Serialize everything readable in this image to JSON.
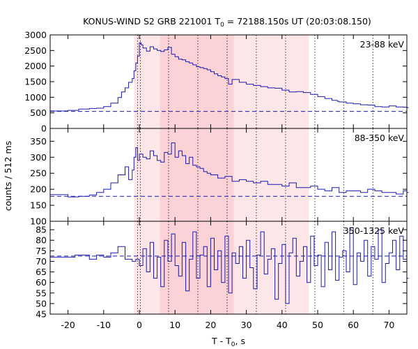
{
  "chart_data": {
    "type": "line",
    "title": {
      "prefix": "KONUS-WIND S2 GRB 221001 T",
      "sub": "0",
      "suffix": " = 72188.150s UT (20:03:08.150)"
    },
    "xlabel": {
      "prefix": "T - T",
      "sub": "0",
      "suffix": ", s"
    },
    "ylabel": "counts / 512 ms",
    "xlim": [
      -25,
      75
    ],
    "x_ticks": [
      -20,
      -10,
      0,
      10,
      20,
      30,
      40,
      50,
      60,
      70
    ],
    "bin_width": 0.512,
    "colors": {
      "curve": "#1a1ab0",
      "background_line": "#1a1ab0",
      "band_outer": "#fde6e8",
      "band_inner": "#fbd3d7",
      "marker_line": "#333333"
    },
    "shaded_intervals": [
      {
        "x": [
          -1.5,
          47.5
        ],
        "shade": "outer"
      },
      {
        "x": [
          5.8,
          26.5
        ],
        "shade": "inner"
      }
    ],
    "marker_lines": [
      -0.5,
      0.3,
      8.2,
      16.4,
      24.6,
      32.8,
      41.0,
      49.2,
      57.3,
      65.5
    ],
    "panels": [
      {
        "label": "23-88 keV",
        "ylim": [
          0,
          3000
        ],
        "y_ticks": [
          0,
          500,
          1000,
          1500,
          2000,
          2500,
          3000
        ],
        "background": 545,
        "series": {
          "name": "23-88 keV",
          "x": [
            -25,
            -20,
            -17,
            -14,
            -12,
            -10,
            -8,
            -6,
            -5,
            -4,
            -3,
            -2,
            -1.5,
            -1,
            -0.5,
            0,
            0.5,
            1,
            2,
            3,
            4,
            5,
            6,
            7,
            8,
            9,
            10,
            11,
            12,
            13,
            14,
            15,
            16,
            17,
            18,
            19,
            20,
            21,
            22,
            23,
            24,
            25,
            26,
            28,
            30,
            32,
            34,
            36,
            38,
            40,
            42,
            44,
            46,
            48,
            50,
            52,
            54,
            55.5,
            56,
            58,
            60,
            62,
            64,
            66,
            68,
            70,
            72,
            74,
            75
          ],
          "y": [
            560,
            580,
            620,
            640,
            650,
            700,
            810,
            990,
            1170,
            1300,
            1480,
            1600,
            1850,
            2100,
            2320,
            2750,
            2680,
            2580,
            2480,
            2620,
            2550,
            2500,
            2470,
            2520,
            2600,
            2380,
            2300,
            2220,
            2200,
            2140,
            2100,
            2040,
            1980,
            1950,
            1920,
            1880,
            1820,
            1750,
            1690,
            1650,
            1600,
            1420,
            1570,
            1480,
            1420,
            1380,
            1340,
            1300,
            1290,
            1230,
            1170,
            1180,
            1150,
            1090,
            1020,
            960,
            900,
            870,
            850,
            810,
            790,
            760,
            750,
            700,
            690,
            720,
            690,
            680,
            670
          ]
        }
      },
      {
        "label": "88-350 keV",
        "ylim": [
          100,
          390
        ],
        "y_ticks": [
          100,
          150,
          200,
          250,
          300,
          350
        ],
        "background": 178,
        "series": {
          "name": "88-350 keV",
          "x": [
            -25,
            -20,
            -17,
            -14,
            -12,
            -10,
            -8,
            -6,
            -4,
            -3,
            -2,
            -1.5,
            -1,
            -0.5,
            0,
            1,
            2,
            3,
            4,
            5,
            6,
            7,
            8,
            9,
            10,
            11,
            12,
            13,
            14,
            15,
            16,
            17,
            18,
            19,
            20,
            22,
            24,
            26,
            28,
            30,
            32,
            34,
            36,
            38,
            40,
            42,
            44,
            46,
            48,
            50,
            52,
            54,
            56,
            58,
            60,
            62,
            64,
            66,
            68,
            70,
            72,
            74,
            75
          ],
          "y": [
            183,
            176,
            178,
            182,
            190,
            200,
            220,
            245,
            270,
            230,
            260,
            300,
            330,
            290,
            310,
            300,
            295,
            320,
            305,
            290,
            285,
            315,
            310,
            345,
            300,
            320,
            305,
            280,
            300,
            275,
            270,
            265,
            255,
            250,
            245,
            235,
            240,
            225,
            230,
            225,
            220,
            225,
            215,
            215,
            210,
            220,
            205,
            205,
            210,
            200,
            195,
            205,
            190,
            195,
            195,
            190,
            200,
            195,
            190,
            190,
            185,
            195,
            190
          ]
        }
      },
      {
        "label": "350-1325 keV",
        "ylim": [
          45,
          89
        ],
        "y_ticks": [
          45,
          50,
          55,
          60,
          65,
          70,
          75,
          80,
          85
        ],
        "background": 72.5,
        "series": {
          "name": "350-1325 keV",
          "x": [
            -25,
            -18,
            -14,
            -12,
            -10,
            -8,
            -6,
            -4,
            -2,
            -1,
            0,
            1,
            2,
            3,
            4,
            5,
            6,
            7,
            8,
            9,
            10,
            11,
            12,
            13,
            14,
            15,
            16,
            17,
            18,
            19,
            20,
            21,
            22,
            23,
            24,
            25,
            26,
            27,
            28,
            29,
            30,
            31,
            32,
            33,
            34,
            35,
            36,
            37,
            38,
            39,
            40,
            41,
            42,
            43,
            44,
            45,
            46,
            47,
            48,
            49,
            50,
            51,
            52,
            53,
            54,
            55,
            56,
            57,
            58,
            59,
            60,
            61,
            62,
            63,
            64,
            65,
            66,
            67,
            68,
            69,
            70,
            71,
            72,
            73,
            74,
            75
          ],
          "y": [
            72,
            73,
            71,
            73,
            72,
            74,
            77,
            71,
            70,
            71,
            68,
            76,
            65,
            79,
            62,
            72,
            58,
            80,
            70,
            83,
            68,
            63,
            79,
            56,
            71,
            84,
            62,
            73,
            77,
            58,
            81,
            66,
            75,
            60,
            82,
            55,
            74,
            69,
            77,
            62,
            80,
            67,
            57,
            73,
            84,
            64,
            71,
            76,
            52,
            69,
            78,
            50,
            74,
            81,
            63,
            70,
            77,
            60,
            82,
            68,
            73,
            58,
            79,
            66,
            84,
            61,
            72,
            75,
            65,
            86,
            59,
            74,
            70,
            80,
            63,
            77,
            71,
            85,
            60,
            69,
            74,
            80,
            66,
            82,
            71,
            62
          ]
        }
      }
    ]
  }
}
